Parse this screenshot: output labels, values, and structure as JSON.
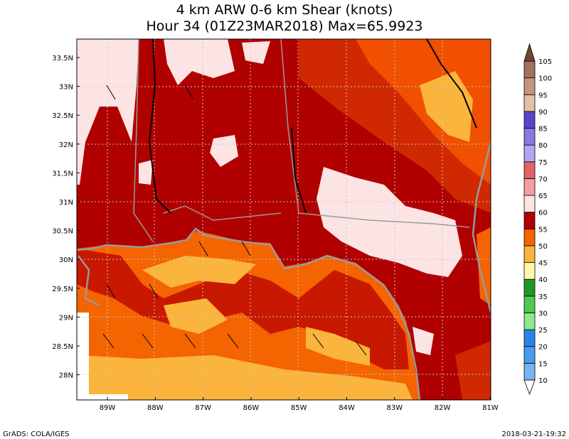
{
  "title": {
    "line1": "4 km ARW 0-6 km Shear (knots)",
    "line2": "Hour 34 (01Z23MAR2018) Max=65.9923"
  },
  "lat_labels": [
    "33.5N",
    "33N",
    "32.5N",
    "32N",
    "31.5N",
    "31N",
    "30.5N",
    "30N",
    "29.5N",
    "29N",
    "28.5N",
    "28N"
  ],
  "lon_labels": [
    "89W",
    "88W",
    "87W",
    "86W",
    "85W",
    "84W",
    "83W",
    "82W",
    "81W"
  ],
  "colorbar": {
    "labels": [
      10,
      15,
      20,
      25,
      30,
      35,
      40,
      45,
      50,
      55,
      60,
      65,
      70,
      75,
      80,
      85,
      90,
      95,
      100,
      105
    ],
    "colors": [
      "#ffffff",
      "#78b4f5",
      "#4a9cf0",
      "#2a84e6",
      "#8ee88e",
      "#4ec84e",
      "#1e9a1e",
      "#fff8a8",
      "#fbb43c",
      "#f46400",
      "#b00000",
      "#fde4e4",
      "#f5a0a0",
      "#e06464",
      "#b4a4f4",
      "#8a78e6",
      "#5a46cc",
      "#e6bea8",
      "#c4947e",
      "#a07060",
      "#6e4636"
    ]
  },
  "footer": {
    "left": "GrADS: COLA/IGES",
    "right": "2018-03-21-19:32"
  }
}
